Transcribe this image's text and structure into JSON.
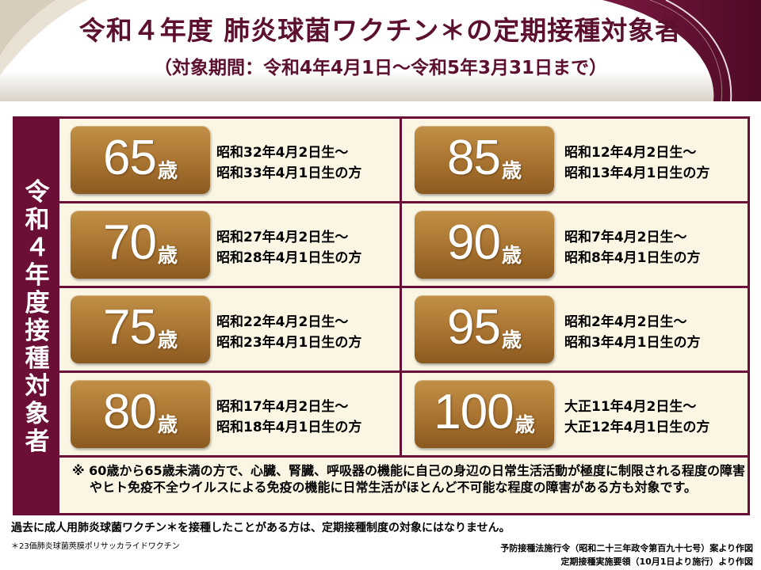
{
  "header": {
    "title": "令和４年度 肺炎球菌ワクチン＊の定期接種対象者",
    "subtitle": "（対象期間：令和4年4月1日～令和5年3月31日まで）"
  },
  "panel": {
    "side_label": [
      "令",
      "和",
      "４",
      "年",
      "度",
      "接",
      "種",
      "対",
      "象",
      "者"
    ],
    "rows": [
      {
        "left": {
          "age": "65",
          "unit": "歳",
          "line1": "昭和32年4月2日生～",
          "line2": "昭和33年4月1日生の方"
        },
        "right": {
          "age": "85",
          "unit": "歳",
          "line1": "昭和12年4月2日生～",
          "line2": "昭和13年4月1日生の方"
        }
      },
      {
        "left": {
          "age": "70",
          "unit": "歳",
          "line1": "昭和27年4月2日生～",
          "line2": "昭和28年4月1日生の方"
        },
        "right": {
          "age": "90",
          "unit": "歳",
          "line1": "昭和7年4月2日生～",
          "line2": "昭和8年4月1日生の方"
        }
      },
      {
        "left": {
          "age": "75",
          "unit": "歳",
          "line1": "昭和22年4月2日生～",
          "line2": "昭和23年4月1日生の方"
        },
        "right": {
          "age": "95",
          "unit": "歳",
          "line1": "昭和2年4月2日生～",
          "line2": "昭和3年4月1日生の方"
        }
      },
      {
        "left": {
          "age": "80",
          "unit": "歳",
          "line1": "昭和17年4月2日生～",
          "line2": "昭和18年4月1日生の方"
        },
        "right": {
          "age": "100",
          "unit": "歳",
          "line1": "大正11年4月2日生～",
          "line2": "大正12年4月1日生の方"
        }
      }
    ],
    "note": "※ 60歳から65歳未満の方で、心臓、腎臓、呼吸器の機能に自己の身辺の日常生活活動が極度に制限される程度の障害やヒト免疫不全ウイルスによる免疫の機能に日常生活がほとんど不可能な程度の障害がある方も対象です。"
  },
  "footer": {
    "note": "過去に成人用肺炎球菌ワクチン＊を接種したことがある方は、定期接種制度の対象にはなりません。",
    "asterisk": "＊23価肺炎球菌莢膜ポリサッカライドワクチン",
    "source_line1": "予防接種法施行令（昭和二十三年政令第百九十七号）案より作図",
    "source_line2": "定期接種実施要領（10月1日より施行）より作図"
  },
  "colors": {
    "accent": "#6b0f36",
    "title": "#5c0f2f",
    "button_gold": "#ab7632",
    "panel_bg": "#fbf6e4"
  }
}
